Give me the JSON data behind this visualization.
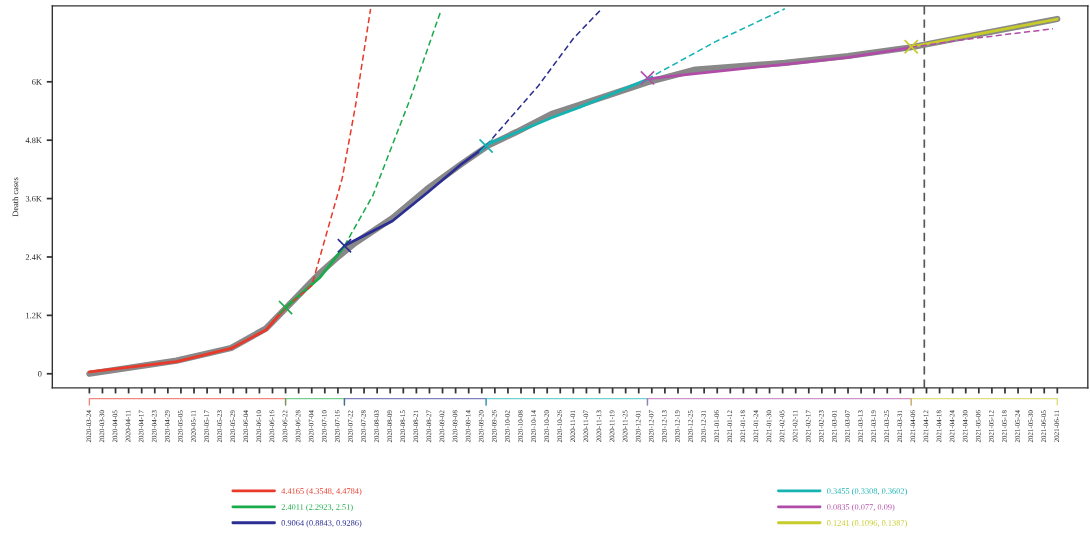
{
  "chart_data": {
    "type": "line",
    "ylabel": "Death cases",
    "xlim": [
      "2020-03-07",
      "2021-06-25"
    ],
    "ylim": [
      -290,
      7560
    ],
    "yticks": [
      0,
      {
        "value": 1200,
        "label": "1.2K"
      },
      {
        "value": 2400,
        "label": "2.4K"
      },
      {
        "value": 3600,
        "label": "3.6K"
      },
      {
        "value": 4800,
        "label": "4.8K"
      },
      {
        "value": 6000,
        "label": "6K"
      }
    ],
    "xticks": [
      "2020-03-24",
      "2020-03-30",
      "2020-04-05",
      "2020-04-11",
      "2020-04-17",
      "2020-04-23",
      "2020-04-29",
      "2020-05-05",
      "2020-05-11",
      "2020-05-17",
      "2020-05-23",
      "2020-05-29",
      "2020-06-04",
      "2020-06-10",
      "2020-06-16",
      "2020-06-22",
      "2020-06-28",
      "2020-07-04",
      "2020-07-10",
      "2020-07-16",
      "2020-07-22",
      "2020-07-28",
      "2020-08-03",
      "2020-08-09",
      "2020-08-15",
      "2020-08-21",
      "2020-08-27",
      "2020-09-02",
      "2020-09-08",
      "2020-09-14",
      "2020-09-20",
      "2020-09-26",
      "2020-10-02",
      "2020-10-08",
      "2020-10-14",
      "2020-10-20",
      "2020-10-26",
      "2020-11-01",
      "2020-11-07",
      "2020-11-13",
      "2020-11-19",
      "2020-11-25",
      "2020-12-01",
      "2020-12-07",
      "2020-12-13",
      "2020-12-19",
      "2020-12-25",
      "2020-12-31",
      "2021-01-06",
      "2021-01-12",
      "2021-01-18",
      "2021-01-24",
      "2021-01-30",
      "2021-02-05",
      "2021-02-11",
      "2021-02-17",
      "2021-02-23",
      "2021-03-01",
      "2021-03-07",
      "2021-03-13",
      "2021-03-19",
      "2021-03-25",
      "2021-03-31",
      "2021-04-06",
      "2021-04-12",
      "2021-04-18",
      "2021-04-24",
      "2021-04-30",
      "2021-05-06",
      "2021-05-12",
      "2021-05-18",
      "2021-05-24",
      "2021-05-30",
      "2021-06-05",
      "2021-06-11"
    ],
    "grid": false,
    "legend": "bottom",
    "series": [
      {
        "color": "#888888",
        "line_style": "solid",
        "x": [
          "2020-03-24",
          "2020-05-03",
          "2020-05-28",
          "2020-06-13",
          "2020-06-22",
          "2020-07-08",
          "2020-07-16",
          "2020-07-24",
          "2020-08-10",
          "2020-08-26",
          "2020-09-11",
          "2020-09-23",
          "2020-10-06",
          "2020-10-22",
          "2020-11-04",
          "2020-12-05",
          "2020-12-27",
          "2021-02-06",
          "2021-03-07",
          "2021-04-05",
          "2021-06-11"
        ],
        "values": [
          0,
          270,
          530,
          930,
          1340,
          2080,
          2400,
          2690,
          3200,
          3800,
          4320,
          4690,
          4970,
          5340,
          5530,
          5990,
          6250,
          6390,
          6530,
          6710,
          7290
        ]
      },
      {
        "name": "4.4165 (4.3548, 4.4784)",
        "color": "#e8392a",
        "line_style": "solid",
        "x": [
          "2020-03-24",
          "2020-05-03",
          "2020-05-28",
          "2020-06-13",
          "2020-06-22"
        ],
        "values": [
          40,
          250,
          520,
          900,
          1360
        ]
      },
      {
        "name": "2.4011 (2.2923, 2.51)",
        "color": "#1aab4a",
        "line_style": "solid",
        "x": [
          "2020-06-22",
          "2020-07-08",
          "2020-07-19"
        ],
        "values": [
          1360,
          1990,
          2620
        ]
      },
      {
        "name": "0.9064 (0.8843, 0.9286)",
        "color": "#2b2f93",
        "line_style": "solid",
        "x": [
          "2020-07-19",
          "2020-08-10",
          "2020-08-26",
          "2020-09-11",
          "2020-09-22"
        ],
        "values": [
          2630,
          3140,
          3720,
          4320,
          4680
        ]
      },
      {
        "name": "0.3455 (0.3308, 0.3602)",
        "color": "#16b3b3",
        "line_style": "solid",
        "x": [
          "2020-09-22",
          "2020-10-22",
          "2020-11-04",
          "2020-12-05"
        ],
        "values": [
          4700,
          5260,
          5480,
          6050
        ]
      },
      {
        "name": "0.0835 (0.077, 0.09)",
        "color": "#b04ca8",
        "line_style": "solid",
        "x": [
          "2020-12-05",
          "2020-12-27",
          "2021-02-06",
          "2021-03-07",
          "2021-04-05"
        ],
        "values": [
          6060,
          6170,
          6360,
          6500,
          6700
        ]
      },
      {
        "name": "0.1241 (0.1096, 0.1387)",
        "color": "#c8cc2a",
        "line_style": "solid",
        "x": [
          "2021-04-05",
          "2021-06-11"
        ],
        "values": [
          6720,
          7290
        ]
      },
      {
        "color": "#e8392a",
        "line_style": "dashed",
        "x": [
          "2020-06-22",
          "2020-07-04",
          "2020-07-18",
          "2020-07-24",
          "2020-07-31"
        ],
        "values": [
          1360,
          1810,
          4020,
          5490,
          7500
        ]
      },
      {
        "color": "#1aab4a",
        "line_style": "dashed",
        "x": [
          "2020-07-19",
          "2020-08-01",
          "2020-08-18",
          "2020-09-01"
        ],
        "values": [
          2630,
          3660,
          5630,
          7430
        ]
      },
      {
        "color": "#2b2f93",
        "line_style": "dashed",
        "x": [
          "2020-09-22",
          "2020-10-16",
          "2020-11-01",
          "2020-11-14"
        ],
        "values": [
          4690,
          5920,
          6890,
          7500
        ]
      },
      {
        "color": "#16b3b3",
        "line_style": "dashed",
        "x": [
          "2020-12-05",
          "2021-01-05",
          "2021-02-06"
        ],
        "values": [
          6060,
          6820,
          7500
        ]
      },
      {
        "color": "#b04ca8",
        "line_style": "dashed",
        "x": [
          "2021-04-05",
          "2021-04-28",
          "2021-06-09"
        ],
        "values": [
          6710,
          6860,
          7090
        ]
      },
      {
        "type": "scatter",
        "marker": "cross",
        "colors": [
          "#1aab4a",
          "#2b2f93",
          "#16b3b3",
          "#b04ca8",
          "#c8cc2a"
        ],
        "x": [
          "2020-06-22",
          "2020-07-19",
          "2020-09-22",
          "2020-12-05",
          "2021-04-05"
        ],
        "values": [
          1360,
          2630,
          4680,
          6080,
          6720
        ]
      }
    ],
    "ref_lines": [
      {
        "axis": "x",
        "value": "2021-04-11",
        "color": "#555555",
        "line_style": "dashed"
      }
    ]
  }
}
